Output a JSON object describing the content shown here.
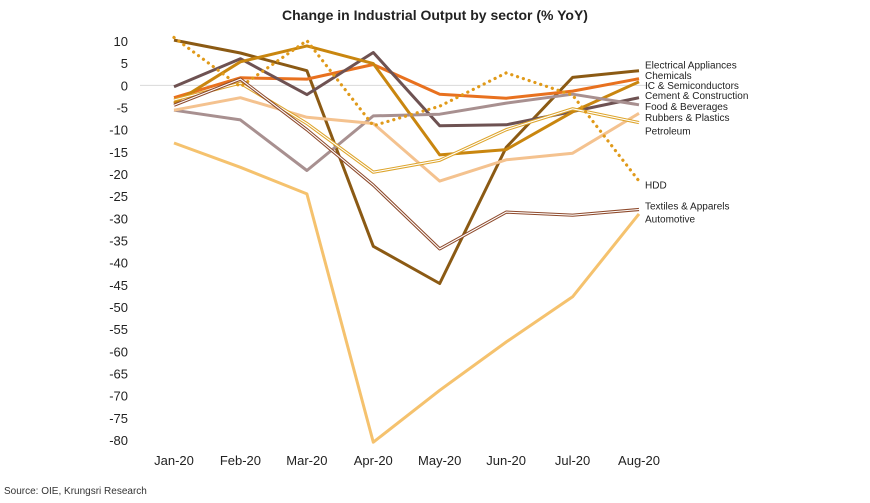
{
  "chart_data": {
    "type": "line",
    "title": "Change in Industrial Output by sector (% YoY)",
    "source": "Source: OIE, Krungsri Research",
    "categories": [
      "Jan-20",
      "Feb-20",
      "Mar-20",
      "Apr-20",
      "May-20",
      "Jun-20",
      "Jul-20",
      "Aug-20"
    ],
    "ylim": [
      -80,
      10
    ],
    "yticks": [
      10,
      5,
      0,
      -5,
      -10,
      -15,
      -20,
      -25,
      -30,
      -35,
      -40,
      -45,
      -50,
      -55,
      -60,
      -65,
      -70,
      -75,
      -80
    ],
    "zero_line": true,
    "series": [
      {
        "name": "Electrical Appliances",
        "color": "#8B5A14",
        "style": "solid",
        "values": [
          10.2,
          7.3,
          3.3,
          -36.3,
          -44.7,
          -14.0,
          1.8,
          3.3
        ]
      },
      {
        "name": "Chemicals",
        "color": "#E8711F",
        "style": "solid",
        "values": [
          -2.8,
          1.7,
          1.4,
          4.7,
          -2.0,
          -2.9,
          -1.3,
          1.5
        ]
      },
      {
        "name": "IC & Semiconductors",
        "color": "#6E5252",
        "style": "solid",
        "values": [
          -0.3,
          6.0,
          -2.1,
          7.4,
          -9.1,
          -8.9,
          -5.9,
          -2.8
        ]
      },
      {
        "name": "Cement & Construction",
        "color": "#C9860F",
        "style": "solid",
        "values": [
          -4.0,
          5.3,
          8.9,
          4.9,
          -15.7,
          -14.5,
          -6.0,
          0.8
        ]
      },
      {
        "name": "Food & Beverages",
        "color": "#A89090",
        "style": "solid",
        "values": [
          -5.6,
          -7.8,
          -19.2,
          -6.9,
          -6.5,
          -4.0,
          -2.0,
          -4.4
        ]
      },
      {
        "name": "Rubbers & Plastics",
        "color": "#F4C28F",
        "style": "solid",
        "values": [
          -5.6,
          -2.8,
          -7.2,
          -8.6,
          -21.6,
          -16.8,
          -15.3,
          -6.3
        ]
      },
      {
        "name": "Petroleum",
        "color": "#DDA42A",
        "style": "double",
        "values": [
          -3.3,
          0.5,
          -8.6,
          -19.6,
          -16.9,
          -10.0,
          -5.3,
          -8.4
        ]
      },
      {
        "name": "HDD",
        "color": "#E09A1A",
        "style": "dotted",
        "values": [
          10.8,
          -0.3,
          10.1,
          -9.1,
          -4.7,
          2.8,
          -2.2,
          -21.6
        ]
      },
      {
        "name": "Textiles & Apparels",
        "color": "#8E4A2C",
        "style": "double",
        "values": [
          -4.5,
          1.4,
          -10.0,
          -22.5,
          -36.9,
          -28.6,
          -29.3,
          -28.0
        ]
      },
      {
        "name": "Automotive",
        "color": "#F5C26E",
        "style": "solid",
        "values": [
          -13.0,
          -18.5,
          -24.5,
          -80.5,
          -68.8,
          -57.9,
          -47.7,
          -29.0
        ]
      }
    ],
    "label_values": [
      {
        "name": "Electrical Appliances",
        "y": 4.6
      },
      {
        "name": "Chemicals",
        "y": 2.2
      },
      {
        "name": "IC & Semiconductors",
        "y": 0.0
      },
      {
        "name": "Cement & Construction",
        "y": -2.3
      },
      {
        "name": "Food & Beverages",
        "y": -4.8
      },
      {
        "name": "Rubbers & Plastics",
        "y": -7.3
      },
      {
        "name": "Petroleum",
        "y": -10.3
      },
      {
        "name": "HDD",
        "y": -22.5
      },
      {
        "name": "Textiles & Apparels",
        "y": -27.2
      },
      {
        "name": "Automotive",
        "y": -30.2
      }
    ]
  }
}
